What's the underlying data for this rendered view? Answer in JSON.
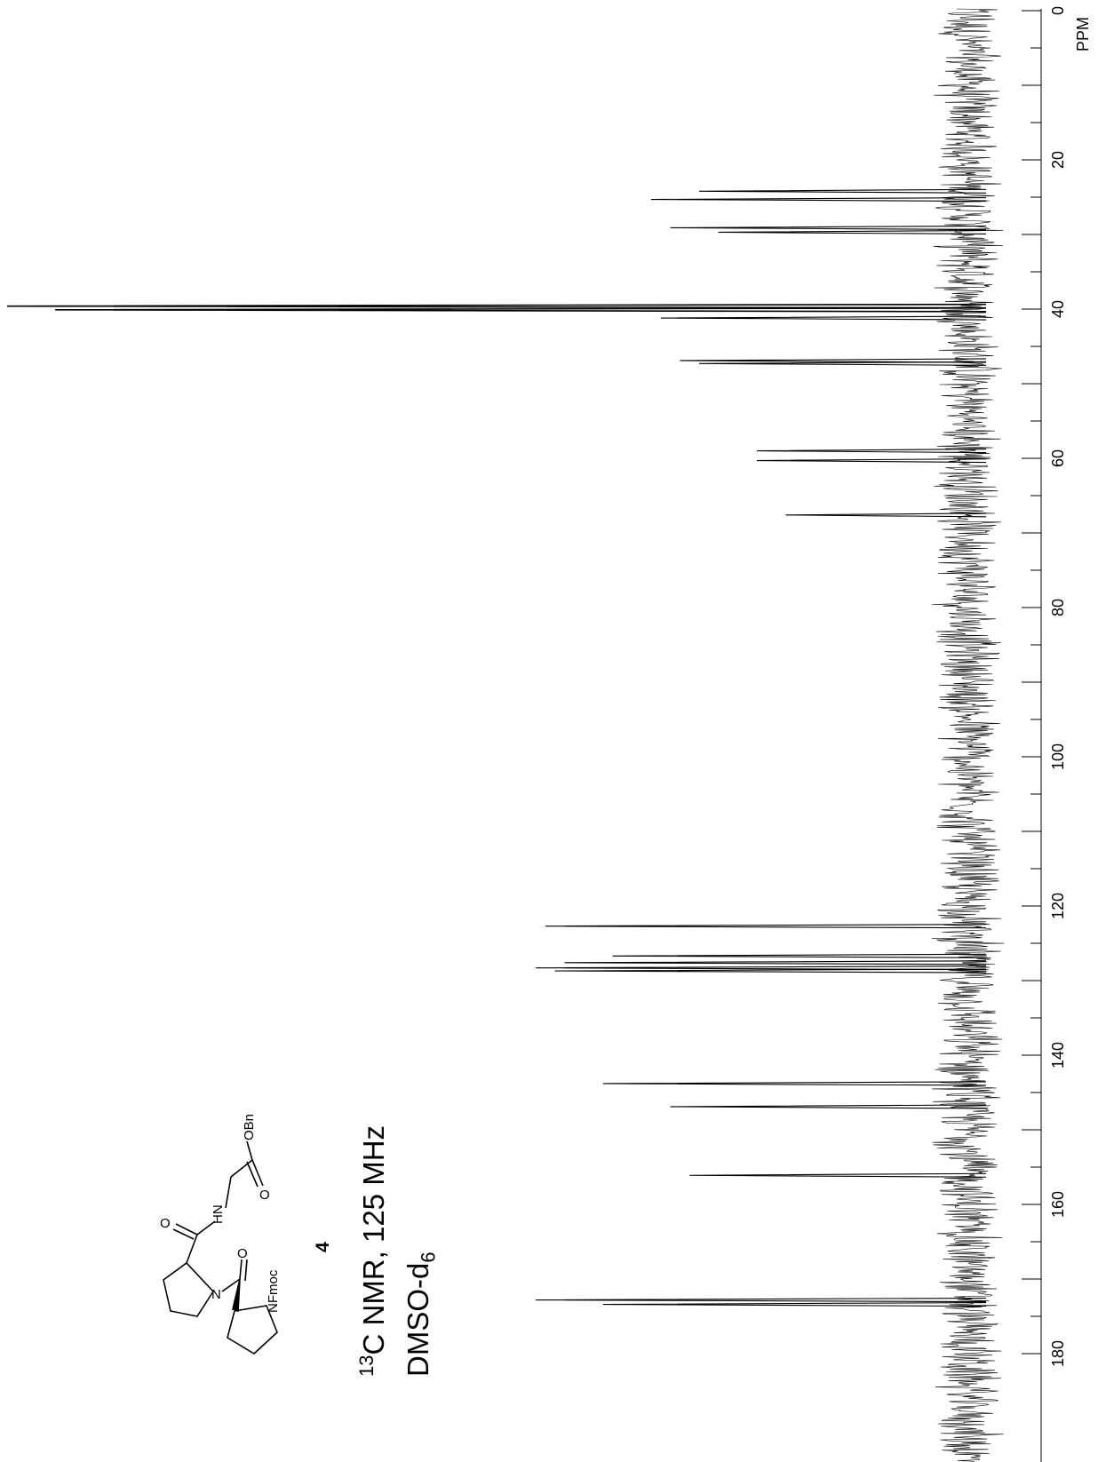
{
  "chart_data": {
    "type": "line",
    "xlabel": "PPM",
    "xlim": [
      0,
      182
    ],
    "ticks": [
      0,
      20,
      40,
      60,
      80,
      100,
      120,
      140,
      160,
      180
    ],
    "peaks": [
      {
        "ppm": 24.2,
        "height": 0.28
      },
      {
        "ppm": 25.3,
        "height": 0.33
      },
      {
        "ppm": 29.1,
        "height": 0.31
      },
      {
        "ppm": 29.7,
        "height": 0.26
      },
      {
        "ppm": 39.6,
        "height": 1.0
      },
      {
        "ppm": 40.1,
        "height": 0.95
      },
      {
        "ppm": 41.2,
        "height": 0.32
      },
      {
        "ppm": 46.9,
        "height": 0.3
      },
      {
        "ppm": 47.3,
        "height": 0.28
      },
      {
        "ppm": 59.0,
        "height": 0.22
      },
      {
        "ppm": 60.3,
        "height": 0.22
      },
      {
        "ppm": 67.6,
        "height": 0.19
      },
      {
        "ppm": 122.7,
        "height": 0.44
      },
      {
        "ppm": 126.7,
        "height": 0.37
      },
      {
        "ppm": 127.6,
        "height": 0.42
      },
      {
        "ppm": 128.3,
        "height": 0.45
      },
      {
        "ppm": 128.7,
        "height": 0.43
      },
      {
        "ppm": 143.8,
        "height": 0.38
      },
      {
        "ppm": 146.9,
        "height": 0.31
      },
      {
        "ppm": 156.1,
        "height": 0.29
      },
      {
        "ppm": 172.8,
        "height": 0.45
      },
      {
        "ppm": 173.4,
        "height": 0.38
      }
    ]
  },
  "molecule": {
    "labels": {
      "ho": "O",
      "hn": "HN",
      "n": "N",
      "o2": "O",
      "nfmoc": "NFmoc",
      "obn": "OBn",
      "o3": "O"
    }
  },
  "compound_number": "4",
  "caption": {
    "nucleus_sup": "13",
    "nmr_text": "C NMR, 125 MHz",
    "solvent_main": "DMSO-d",
    "solvent_sub": "6"
  },
  "axis_label": "PPM"
}
